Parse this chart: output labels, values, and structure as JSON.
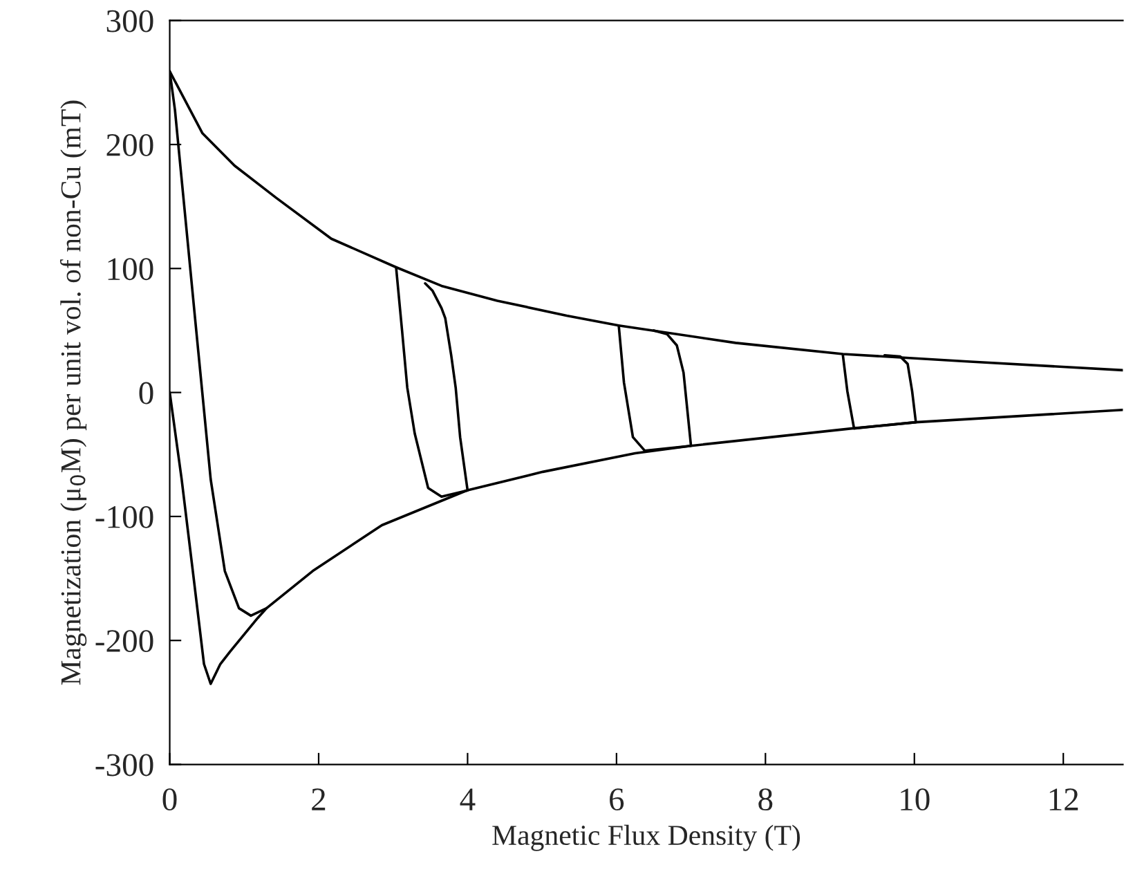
{
  "chart_data": {
    "type": "line",
    "xlabel": "Magnetic Flux Density (T)",
    "ylabel": "Magnetization (μ$_{0}$M) per unit vol. of non-Cu (mT)",
    "xlim": [
      0,
      12.8
    ],
    "xticks": [
      0,
      2,
      4,
      6,
      8,
      10,
      12
    ],
    "ylim": [
      -300,
      300
    ],
    "yticks": [
      -300,
      -200,
      -100,
      0,
      100,
      200,
      300
    ],
    "grid": false,
    "marker": "none",
    "line_style": "solid",
    "series": [
      {
        "color": "#000000",
        "x": [
          0,
          0.16,
          0.31,
          0.46,
          0.55,
          0.68,
          0.81,
          1.18,
          1.3
        ],
        "values": [
          0,
          -70,
          -144,
          -219,
          -235,
          -219,
          -209,
          -182,
          -174
        ]
      },
      {
        "color": "#000000",
        "x": [
          12.8,
          10.71,
          9.04,
          7.6,
          6.03,
          5.33,
          4.4,
          3.65,
          3.04,
          2.17,
          1.43,
          0.87,
          0.44,
          0
        ],
        "values": [
          18,
          25,
          31,
          40,
          54,
          62,
          74,
          86,
          101,
          124,
          157,
          183,
          209,
          259
        ]
      },
      {
        "color": "#000000",
        "x": [
          0,
          0.07,
          0.16,
          0.34,
          0.46,
          0.55,
          0.74,
          0.93,
          1.09,
          1.3,
          1.92,
          2.85,
          3.99,
          5.01,
          6.25,
          7.0,
          9.16,
          10.02,
          12.8
        ],
        "values": [
          259,
          228,
          172,
          60,
          -14,
          -70,
          -144,
          -174,
          -180,
          -174,
          -144,
          -107,
          -79,
          -64,
          -49,
          -43,
          -29,
          -24,
          -14
        ]
      },
      {
        "color": "#000000",
        "x": [
          3.04,
          3.12,
          3.19,
          3.29,
          3.47,
          3.65,
          4.0,
          3.9,
          3.84,
          3.78,
          3.7,
          3.65,
          3.53,
          3.43
        ],
        "values": [
          101,
          50,
          4,
          -33,
          -77,
          -84,
          -79,
          -36,
          4,
          30,
          60,
          68,
          82,
          88
        ]
      },
      {
        "color": "#000000",
        "x": [
          6.03,
          6.1,
          6.22,
          6.38,
          7.0,
          6.9,
          6.81,
          6.68,
          6.5
        ],
        "values": [
          54,
          8,
          -36,
          -47,
          -43,
          16,
          38,
          47,
          50
        ]
      },
      {
        "color": "#000000",
        "x": [
          9.04,
          9.1,
          9.19,
          10.02,
          9.97,
          9.91,
          9.81,
          9.6
        ],
        "values": [
          30,
          1,
          -29,
          -24,
          1,
          23,
          29,
          30
        ]
      }
    ]
  }
}
